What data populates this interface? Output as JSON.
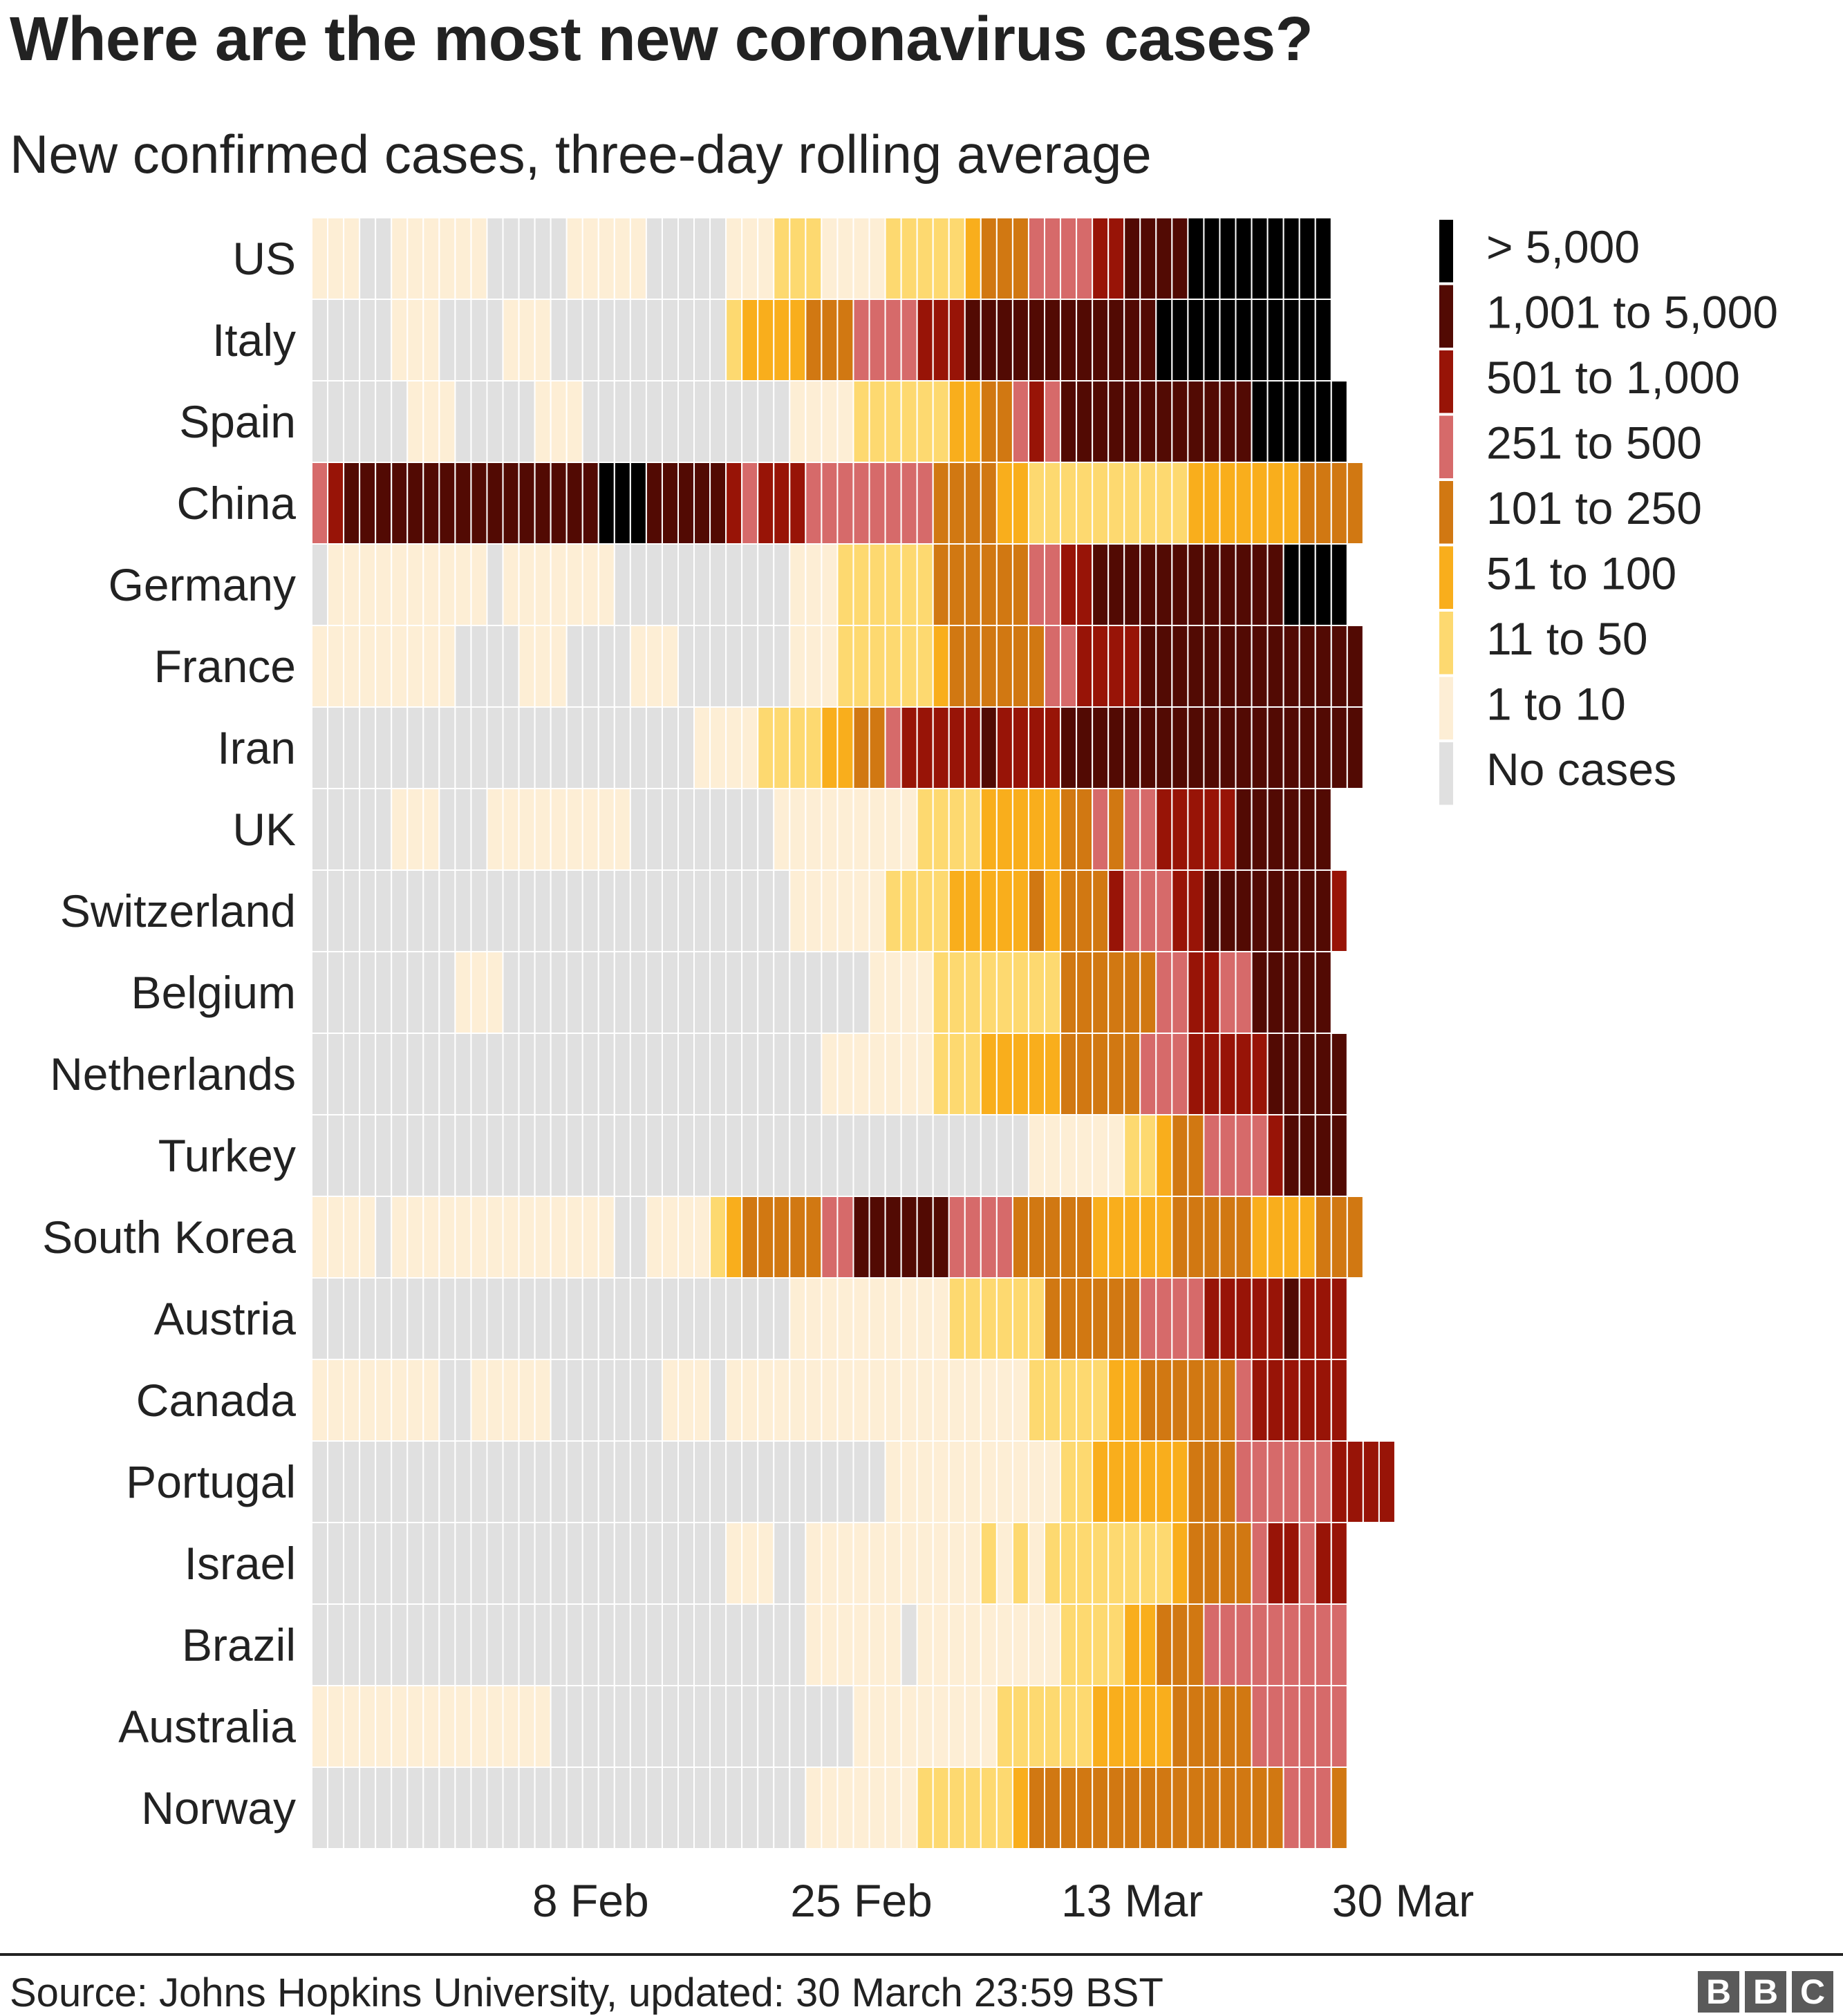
{
  "title": "Where are the most new coronavirus cases?",
  "subtitle": "New confirmed cases, three-day rolling average",
  "source": "Source: Johns Hopkins University, updated:  30 March 23:59 BST",
  "logo": [
    "B",
    "B",
    "C"
  ],
  "chart_data": {
    "type": "heatmap",
    "x_start": "22 Jan",
    "x_end": "30 Mar",
    "x_ticks": [
      {
        "label": "8 Feb",
        "day_index": 17
      },
      {
        "label": "25 Feb",
        "day_index": 34
      },
      {
        "label": "13 Mar",
        "day_index": 51
      },
      {
        "label": "30 Mar",
        "day_index": 68
      }
    ],
    "legend": [
      {
        "label": "> 5,000",
        "color": "#000000"
      },
      {
        "label": "1,001 to 5,000",
        "color": "#520a03"
      },
      {
        "label": "501 to 1,000",
        "color": "#981407"
      },
      {
        "label": "251 to 500",
        "color": "#d66a6a"
      },
      {
        "label": "101 to 250",
        "color": "#d17812"
      },
      {
        "label": "51 to 100",
        "color": "#f9ae1c"
      },
      {
        "label": "11 to 50",
        "color": "#fdd970"
      },
      {
        "label": "1 to 10",
        "color": "#fdeed5"
      },
      {
        "label": "No cases",
        "color": "#e0e0e0"
      }
    ],
    "level_key": {
      "0": "No cases",
      "1": "1 to 10",
      "2": "11 to 50",
      "3": "51 to 100",
      "4": "101 to 250",
      "5": "251 to 500",
      "6": "501 to 1,000",
      "7": "1,001 to 5,000",
      "8": "> 5,000"
    },
    "rows": [
      {
        "name": "US",
        "runs": [
          [
            1,
            3
          ],
          [
            0,
            2
          ],
          [
            1,
            6
          ],
          [
            0,
            5
          ],
          [
            1,
            5
          ],
          [
            0,
            5
          ],
          [
            1,
            3
          ],
          [
            2,
            3
          ],
          [
            1,
            4
          ],
          [
            2,
            5
          ],
          [
            3,
            1
          ],
          [
            4,
            3
          ],
          [
            5,
            4
          ],
          [
            6,
            2
          ],
          [
            7,
            4
          ],
          [
            8,
            9
          ]
        ]
      },
      {
        "name": "Italy",
        "runs": [
          [
            0,
            5
          ],
          [
            1,
            3
          ],
          [
            0,
            4
          ],
          [
            1,
            3
          ],
          [
            0,
            11
          ],
          [
            2,
            1
          ],
          [
            3,
            4
          ],
          [
            4,
            3
          ],
          [
            5,
            4
          ],
          [
            6,
            3
          ],
          [
            7,
            12
          ],
          [
            8,
            11
          ]
        ]
      },
      {
        "name": "Spain",
        "runs": [
          [
            0,
            6
          ],
          [
            1,
            3
          ],
          [
            0,
            5
          ],
          [
            1,
            3
          ],
          [
            0,
            13
          ],
          [
            1,
            4
          ],
          [
            2,
            6
          ],
          [
            3,
            2
          ],
          [
            4,
            2
          ],
          [
            5,
            1
          ],
          [
            6,
            1
          ],
          [
            5,
            1
          ],
          [
            7,
            12
          ],
          [
            8,
            6
          ]
        ]
      },
      {
        "name": "China",
        "runs": [
          [
            5,
            1
          ],
          [
            6,
            1
          ],
          [
            7,
            16
          ],
          [
            8,
            3
          ],
          [
            7,
            5
          ],
          [
            6,
            1
          ],
          [
            5,
            1
          ],
          [
            6,
            3
          ],
          [
            5,
            8
          ],
          [
            4,
            4
          ],
          [
            3,
            2
          ],
          [
            2,
            10
          ],
          [
            3,
            7
          ],
          [
            4,
            4
          ]
        ]
      },
      {
        "name": "Germany",
        "runs": [
          [
            0,
            1
          ],
          [
            1,
            10
          ],
          [
            0,
            1
          ],
          [
            1,
            7
          ],
          [
            0,
            11
          ],
          [
            1,
            3
          ],
          [
            2,
            6
          ],
          [
            4,
            6
          ],
          [
            5,
            2
          ],
          [
            6,
            2
          ],
          [
            7,
            12
          ],
          [
            8,
            4
          ]
        ]
      },
      {
        "name": "France",
        "runs": [
          [
            1,
            9
          ],
          [
            0,
            4
          ],
          [
            1,
            3
          ],
          [
            0,
            4
          ],
          [
            1,
            3
          ],
          [
            0,
            7
          ],
          [
            1,
            3
          ],
          [
            2,
            6
          ],
          [
            3,
            1
          ],
          [
            4,
            6
          ],
          [
            5,
            2
          ],
          [
            6,
            4
          ],
          [
            7,
            14
          ]
        ]
      },
      {
        "name": "Iran",
        "runs": [
          [
            0,
            24
          ],
          [
            1,
            4
          ],
          [
            2,
            4
          ],
          [
            3,
            2
          ],
          [
            4,
            2
          ],
          [
            5,
            1
          ],
          [
            6,
            5
          ],
          [
            7,
            1
          ],
          [
            6,
            4
          ],
          [
            7,
            19
          ]
        ]
      },
      {
        "name": "UK",
        "runs": [
          [
            0,
            5
          ],
          [
            1,
            3
          ],
          [
            0,
            3
          ],
          [
            1,
            9
          ],
          [
            0,
            9
          ],
          [
            1,
            9
          ],
          [
            2,
            4
          ],
          [
            3,
            5
          ],
          [
            4,
            2
          ],
          [
            5,
            1
          ],
          [
            4,
            1
          ],
          [
            5,
            2
          ],
          [
            6,
            5
          ],
          [
            7,
            6
          ]
        ]
      },
      {
        "name": "Switzerland",
        "runs": [
          [
            0,
            30
          ],
          [
            1,
            6
          ],
          [
            2,
            4
          ],
          [
            3,
            5
          ],
          [
            4,
            1
          ],
          [
            3,
            1
          ],
          [
            4,
            3
          ],
          [
            6,
            1
          ],
          [
            5,
            3
          ],
          [
            6,
            2
          ],
          [
            7,
            8
          ],
          [
            6,
            1
          ]
        ]
      },
      {
        "name": "Belgium",
        "runs": [
          [
            0,
            9
          ],
          [
            1,
            3
          ],
          [
            0,
            23
          ],
          [
            1,
            4
          ],
          [
            2,
            8
          ],
          [
            4,
            6
          ],
          [
            5,
            2
          ],
          [
            6,
            2
          ],
          [
            5,
            2
          ],
          [
            7,
            5
          ]
        ]
      },
      {
        "name": "Netherlands",
        "runs": [
          [
            0,
            32
          ],
          [
            1,
            7
          ],
          [
            2,
            3
          ],
          [
            3,
            5
          ],
          [
            4,
            5
          ],
          [
            5,
            3
          ],
          [
            6,
            5
          ],
          [
            7,
            5
          ]
        ]
      },
      {
        "name": "Turkey",
        "runs": [
          [
            0,
            45
          ],
          [
            1,
            6
          ],
          [
            2,
            2
          ],
          [
            3,
            1
          ],
          [
            4,
            2
          ],
          [
            5,
            4
          ],
          [
            6,
            1
          ],
          [
            7,
            4
          ]
        ]
      },
      {
        "name": "South Korea",
        "runs": [
          [
            1,
            4
          ],
          [
            0,
            1
          ],
          [
            1,
            14
          ],
          [
            0,
            2
          ],
          [
            1,
            4
          ],
          [
            2,
            1
          ],
          [
            3,
            1
          ],
          [
            4,
            5
          ],
          [
            5,
            2
          ],
          [
            7,
            6
          ],
          [
            5,
            4
          ],
          [
            4,
            5
          ],
          [
            3,
            5
          ],
          [
            4,
            5
          ],
          [
            3,
            4
          ],
          [
            4,
            3
          ]
        ]
      },
      {
        "name": "Austria",
        "runs": [
          [
            0,
            30
          ],
          [
            1,
            10
          ],
          [
            2,
            6
          ],
          [
            4,
            6
          ],
          [
            5,
            4
          ],
          [
            6,
            5
          ],
          [
            7,
            1
          ],
          [
            6,
            3
          ]
        ]
      },
      {
        "name": "Canada",
        "runs": [
          [
            1,
            8
          ],
          [
            0,
            2
          ],
          [
            1,
            5
          ],
          [
            0,
            7
          ],
          [
            1,
            3
          ],
          [
            0,
            1
          ],
          [
            1,
            19
          ],
          [
            2,
            5
          ],
          [
            3,
            2
          ],
          [
            4,
            6
          ],
          [
            5,
            1
          ],
          [
            6,
            6
          ]
        ]
      },
      {
        "name": "Portugal",
        "runs": [
          [
            0,
            36
          ],
          [
            1,
            11
          ],
          [
            2,
            2
          ],
          [
            3,
            6
          ],
          [
            4,
            3
          ],
          [
            5,
            6
          ],
          [
            6,
            4
          ]
        ]
      },
      {
        "name": "Israel",
        "runs": [
          [
            0,
            26
          ],
          [
            1,
            3
          ],
          [
            0,
            2
          ],
          [
            1,
            11
          ],
          [
            2,
            1
          ],
          [
            1,
            1
          ],
          [
            2,
            1
          ],
          [
            1,
            1
          ],
          [
            2,
            8
          ],
          [
            3,
            1
          ],
          [
            4,
            4
          ],
          [
            5,
            1
          ],
          [
            6,
            2
          ],
          [
            5,
            1
          ],
          [
            6,
            2
          ]
        ]
      },
      {
        "name": "Brazil",
        "runs": [
          [
            0,
            31
          ],
          [
            1,
            6
          ],
          [
            0,
            1
          ],
          [
            1,
            9
          ],
          [
            2,
            4
          ],
          [
            3,
            2
          ],
          [
            4,
            3
          ],
          [
            5,
            9
          ]
        ]
      },
      {
        "name": "Australia",
        "runs": [
          [
            1,
            15
          ],
          [
            0,
            19
          ],
          [
            1,
            9
          ],
          [
            2,
            6
          ],
          [
            3,
            5
          ],
          [
            4,
            5
          ],
          [
            5,
            6
          ]
        ]
      },
      {
        "name": "Norway",
        "runs": [
          [
            0,
            31
          ],
          [
            1,
            7
          ],
          [
            2,
            6
          ],
          [
            3,
            1
          ],
          [
            4,
            16
          ],
          [
            5,
            3
          ],
          [
            4,
            1
          ]
        ]
      }
    ]
  }
}
